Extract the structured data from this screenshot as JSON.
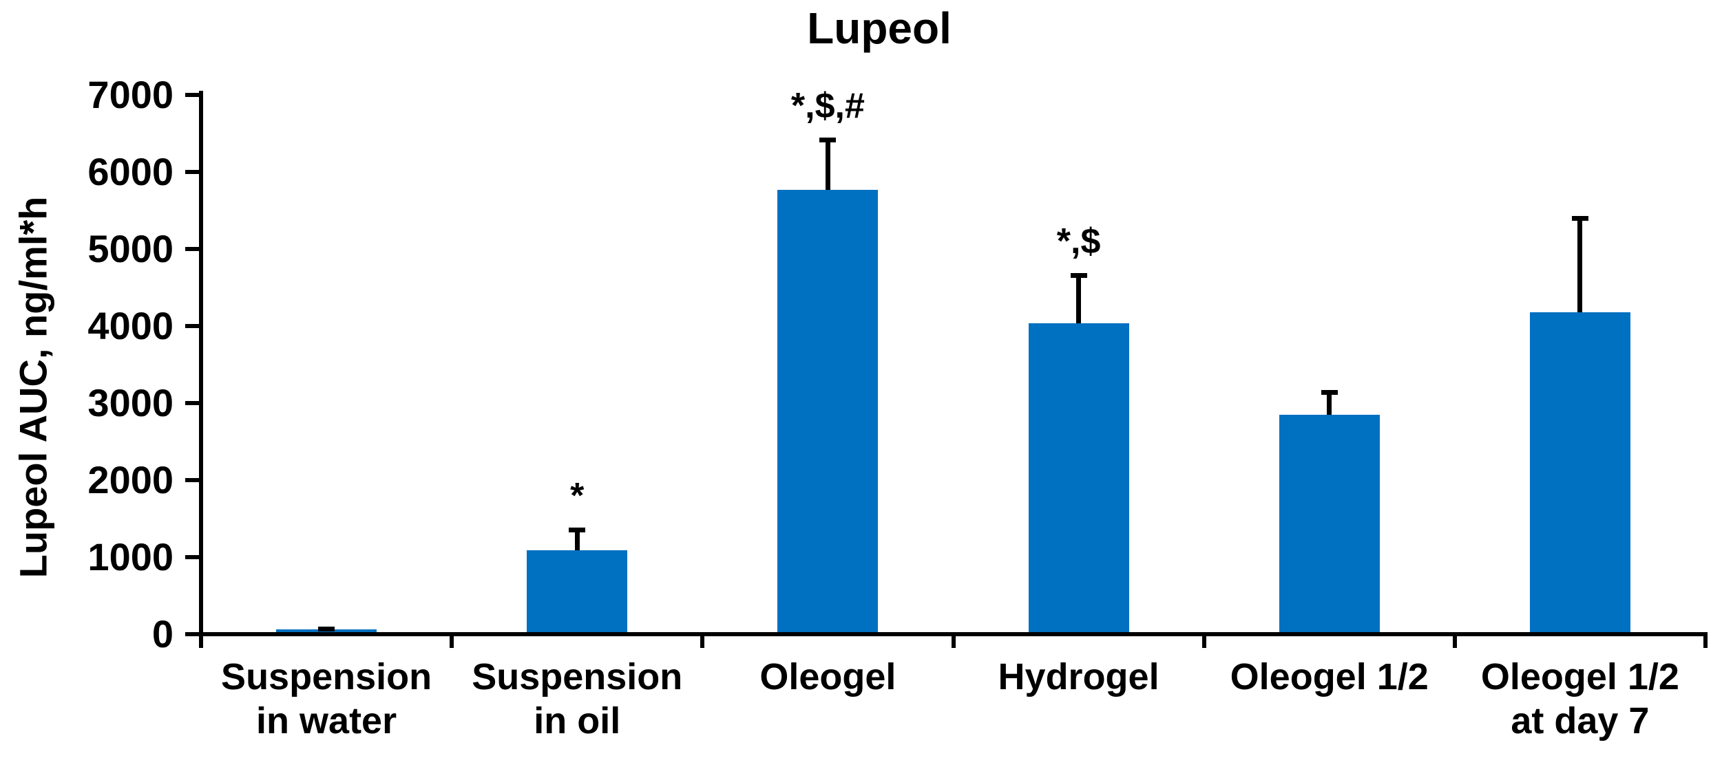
{
  "chart_data": {
    "type": "bar",
    "title": "Lupeol",
    "xlabel": "",
    "ylabel": "Lupeol AUC, ng/ml*h",
    "categories": [
      "Suspension\nin water",
      "Suspension\nin oil",
      "Oleogel",
      "Hydrogel",
      "Oleogel 1/2",
      "Oleogel 1/2\nat day 7"
    ],
    "values": [
      65,
      1090,
      5770,
      4040,
      2850,
      4180
    ],
    "errors_plus": [
      30,
      290,
      680,
      650,
      320,
      1250
    ],
    "annotations": [
      "",
      "*",
      "*,$,#",
      "*,$",
      "",
      ""
    ],
    "ylim": [
      0,
      7000
    ],
    "yticks": [
      0,
      1000,
      2000,
      3000,
      4000,
      5000,
      6000,
      7000
    ],
    "grid": false,
    "legend": null,
    "bar_color": "#0070C0",
    "axis_color": "#000000",
    "text_color": "#000000",
    "background_color": "#FFFFFF"
  }
}
